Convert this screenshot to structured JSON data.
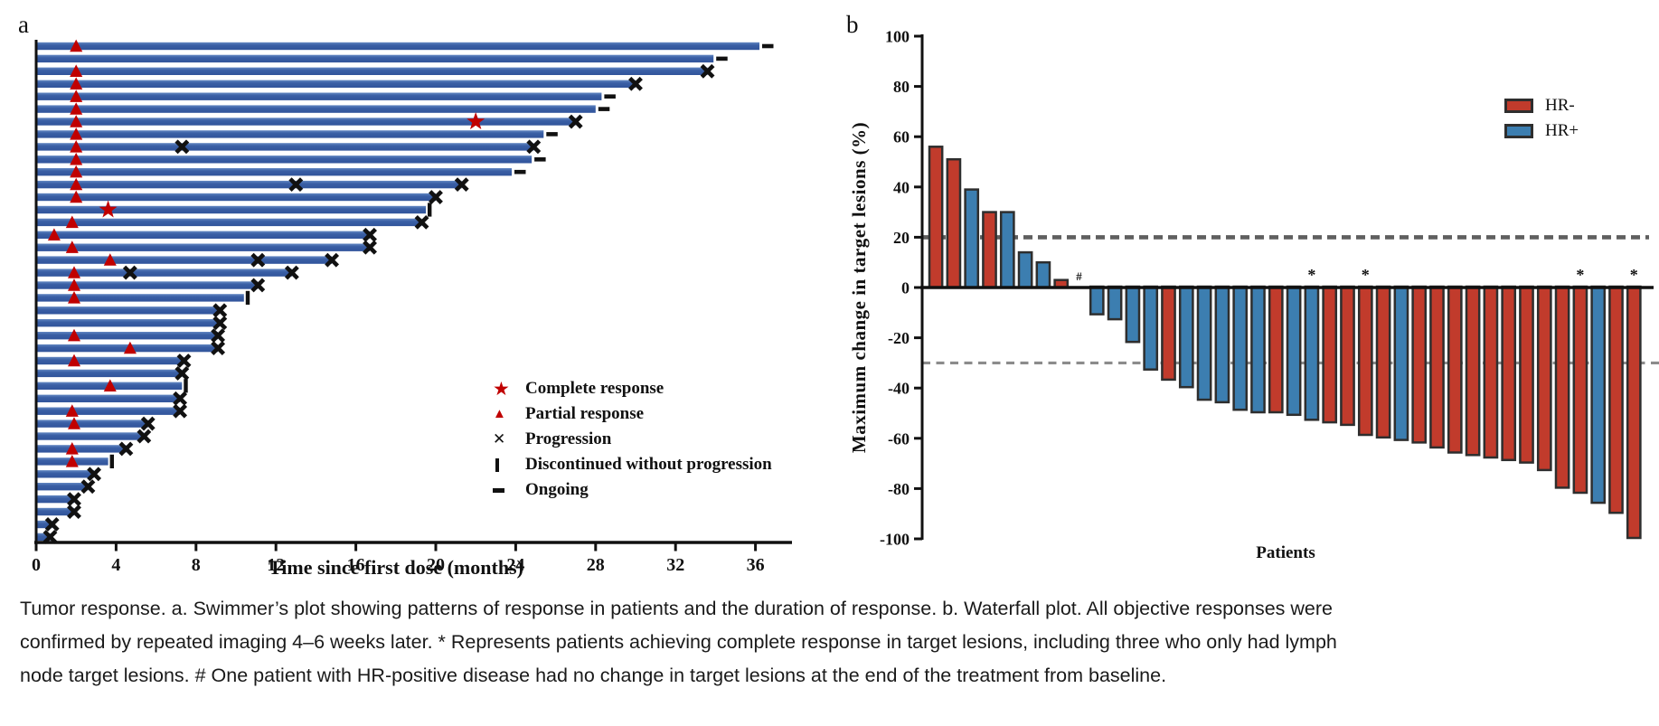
{
  "figure": {
    "panel_a_label": "a",
    "panel_b_label": "b",
    "background": "#ffffff"
  },
  "chart_data": [
    {
      "type": "swimmer",
      "panel": "a",
      "xlabel": "Time since first dose (months)",
      "xticks": [
        0,
        4,
        8,
        12,
        16,
        20,
        24,
        28,
        32,
        36
      ],
      "xlim": [
        0,
        37.5
      ],
      "bar_color": "#3A5FA5",
      "bar_highlight": "#6287C2",
      "marker_red": "#C00000",
      "marker_black": "#111111",
      "legend": [
        {
          "marker": "star",
          "label": "Complete response",
          "color": "#C00000"
        },
        {
          "marker": "triangle",
          "label": "Partial response",
          "color": "#C00000"
        },
        {
          "marker": "x",
          "label": "Progression",
          "color": "#111111"
        },
        {
          "marker": "vbar",
          "label": "Discontinued without progression",
          "color": "#111111"
        },
        {
          "marker": "dash",
          "label": "Ongoing",
          "color": "#111111"
        }
      ],
      "patients": [
        {
          "end": 36.2,
          "ongoing": true,
          "pr": 2
        },
        {
          "end": 33.9,
          "ongoing": true
        },
        {
          "end": 33.6,
          "pr": 2,
          "x": [
            33.6
          ]
        },
        {
          "end": 30.0,
          "pr": 2,
          "x": [
            30.0
          ]
        },
        {
          "end": 28.3,
          "ongoing": true,
          "pr": 2
        },
        {
          "end": 28.0,
          "ongoing": true,
          "pr": 2
        },
        {
          "end": 27.0,
          "pr": 2,
          "cr": 22,
          "x": [
            27.0
          ]
        },
        {
          "end": 25.4,
          "ongoing": true,
          "pr": 2
        },
        {
          "end": 24.9,
          "pr": 2,
          "x": [
            7.3,
            24.9
          ]
        },
        {
          "end": 24.8,
          "ongoing": true,
          "pr": 2
        },
        {
          "end": 23.8,
          "ongoing": true,
          "pr": 2
        },
        {
          "end": 21.3,
          "pr": 2,
          "x": [
            13.0,
            21.3
          ]
        },
        {
          "end": 20.0,
          "pr": 2,
          "x": [
            20.0
          ]
        },
        {
          "end": 19.5,
          "cr": 3.6,
          "disc": 19.5
        },
        {
          "end": 19.3,
          "pr": 1.8,
          "x": [
            19.3
          ]
        },
        {
          "end": 16.7,
          "pr": 0.9,
          "x": [
            16.7
          ]
        },
        {
          "end": 16.7,
          "pr": 1.8,
          "x": [
            16.7
          ]
        },
        {
          "end": 14.8,
          "pr": 3.7,
          "x": [
            11.1,
            14.8
          ]
        },
        {
          "end": 12.8,
          "pr": 1.9,
          "x": [
            4.7,
            12.8
          ]
        },
        {
          "end": 11.1,
          "pr": 1.9,
          "x": [
            11.1
          ]
        },
        {
          "end": 10.4,
          "pr": 1.9,
          "disc": 10.4
        },
        {
          "end": 9.2,
          "x": [
            9.2
          ]
        },
        {
          "end": 9.2,
          "x": [
            9.2
          ]
        },
        {
          "end": 9.1,
          "pr": 1.9,
          "x": [
            9.1
          ]
        },
        {
          "end": 9.1,
          "pr": 4.7,
          "x": [
            9.1
          ]
        },
        {
          "end": 7.4,
          "pr": 1.9,
          "x": [
            7.4
          ]
        },
        {
          "end": 7.3,
          "x": [
            7.3
          ]
        },
        {
          "end": 7.3,
          "pr": 3.7,
          "disc": 7.3
        },
        {
          "end": 7.2,
          "x": [
            7.2
          ]
        },
        {
          "end": 7.2,
          "pr": 1.8,
          "x": [
            7.2
          ]
        },
        {
          "end": 5.6,
          "pr": 1.9,
          "x": [
            5.6
          ]
        },
        {
          "end": 5.4,
          "x": [
            5.4
          ]
        },
        {
          "end": 4.5,
          "pr": 1.8,
          "x": [
            4.5
          ]
        },
        {
          "end": 3.6,
          "pr": 1.8,
          "disc": 3.6
        },
        {
          "end": 2.9,
          "x": [
            2.9
          ]
        },
        {
          "end": 2.6,
          "x": [
            2.6
          ]
        },
        {
          "end": 1.9,
          "x": [
            1.9
          ]
        },
        {
          "end": 1.9,
          "x": [
            1.9
          ]
        },
        {
          "end": 0.8,
          "x": [
            0.8
          ]
        },
        {
          "end": 0.7,
          "x": [
            0.7
          ]
        }
      ]
    },
    {
      "type": "waterfall",
      "panel": "b",
      "ylabel": "Maximum change in target lesions (%)",
      "xlabel": "Patients",
      "ylim": [
        -100,
        100
      ],
      "yticks": [
        100,
        80,
        60,
        40,
        20,
        0,
        -20,
        -40,
        -60,
        -80,
        -100
      ],
      "reference_lines": [
        20,
        -30
      ],
      "legend": [
        {
          "label": "HR-",
          "color": "#C13B2C"
        },
        {
          "label": "HR+",
          "color": "#3C7EB0"
        }
      ],
      "bar_outline": "#2e2e2e",
      "bars": [
        {
          "value": 56,
          "group": "HR-"
        },
        {
          "value": 51,
          "group": "HR-"
        },
        {
          "value": 39,
          "group": "HR+"
        },
        {
          "value": 30,
          "group": "HR-"
        },
        {
          "value": 30,
          "group": "HR+"
        },
        {
          "value": 14,
          "group": "HR+"
        },
        {
          "value": 10,
          "group": "HR+"
        },
        {
          "value": 3,
          "group": "HR-"
        },
        {
          "value": 0,
          "group": "HR+",
          "annotation": "#"
        },
        {
          "value": -11,
          "group": "HR+"
        },
        {
          "value": -13,
          "group": "HR+"
        },
        {
          "value": -22,
          "group": "HR+"
        },
        {
          "value": -33,
          "group": "HR+"
        },
        {
          "value": -37,
          "group": "HR-"
        },
        {
          "value": -40,
          "group": "HR+"
        },
        {
          "value": -45,
          "group": "HR+"
        },
        {
          "value": -46,
          "group": "HR+"
        },
        {
          "value": -49,
          "group": "HR+"
        },
        {
          "value": -50,
          "group": "HR+"
        },
        {
          "value": -50,
          "group": "HR-"
        },
        {
          "value": -51,
          "group": "HR+"
        },
        {
          "value": -53,
          "group": "HR+",
          "annotation": "*"
        },
        {
          "value": -54,
          "group": "HR-"
        },
        {
          "value": -55,
          "group": "HR-"
        },
        {
          "value": -59,
          "group": "HR-",
          "annotation": "*"
        },
        {
          "value": -60,
          "group": "HR-"
        },
        {
          "value": -61,
          "group": "HR+"
        },
        {
          "value": -62,
          "group": "HR-"
        },
        {
          "value": -64,
          "group": "HR-"
        },
        {
          "value": -66,
          "group": "HR-"
        },
        {
          "value": -67,
          "group": "HR-"
        },
        {
          "value": -68,
          "group": "HR-"
        },
        {
          "value": -69,
          "group": "HR-"
        },
        {
          "value": -70,
          "group": "HR-"
        },
        {
          "value": -73,
          "group": "HR-"
        },
        {
          "value": -80,
          "group": "HR-"
        },
        {
          "value": -82,
          "group": "HR-",
          "annotation": "*"
        },
        {
          "value": -86,
          "group": "HR+"
        },
        {
          "value": -90,
          "group": "HR-"
        },
        {
          "value": -100,
          "group": "HR-",
          "annotation": "*"
        }
      ]
    }
  ],
  "caption": {
    "lines": [
      "Tumor response. a. Swimmer’s plot showing patterns of response in patients and the duration of response. b. Waterfall plot. All objective responses were",
      "confirmed by repeated imaging 4–6 weeks later. * Represents patients achieving complete response in target lesions, including three who only had lymph",
      "node target lesions. # One patient with HR-positive disease had no change in target lesions at the end of the treatment from baseline."
    ]
  }
}
